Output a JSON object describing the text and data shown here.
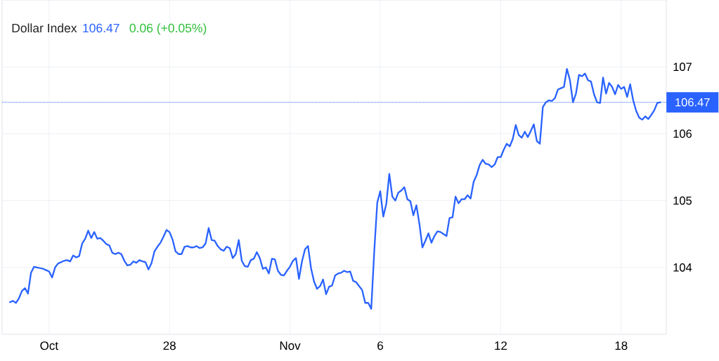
{
  "chart_data": {
    "type": "line",
    "title": "Dollar Index",
    "annotations": [
      "106.47",
      "0.06 (+0.05%)"
    ],
    "categories": [
      null,
      null,
      null,
      null,
      null,
      null,
      null,
      null,
      null,
      null,
      null,
      null,
      null,
      "Oct",
      null,
      null,
      null,
      null,
      null,
      null,
      null,
      null,
      null,
      null,
      null,
      null,
      null,
      null,
      null,
      null,
      null,
      null,
      null,
      null,
      null,
      null,
      null,
      null,
      null,
      null,
      null,
      null,
      null,
      null,
      null,
      null,
      null,
      null,
      null,
      null,
      null,
      null,
      null,
      "28",
      null,
      null,
      null,
      null,
      null,
      null,
      null,
      null,
      null,
      null,
      null,
      null,
      null,
      null,
      null,
      null,
      null,
      null,
      null,
      null,
      null,
      null,
      null,
      null,
      null,
      null,
      null,
      null,
      null,
      null,
      null,
      null,
      null,
      null,
      null,
      null,
      null,
      null,
      null,
      "Nov",
      null,
      null,
      null,
      null,
      null,
      null,
      null,
      null,
      null,
      null,
      null,
      null,
      null,
      null,
      null,
      null,
      null,
      null,
      null,
      null,
      null,
      null,
      null,
      null,
      null,
      null,
      null,
      null,
      null,
      "6",
      null,
      null,
      null,
      null,
      null,
      null,
      null,
      null,
      null,
      null,
      null,
      null,
      null,
      null,
      null,
      null,
      null,
      null,
      null,
      null,
      null,
      null,
      null,
      null,
      null,
      null,
      null,
      null,
      null,
      null,
      null,
      null,
      null,
      null,
      null,
      null,
      null,
      null,
      null,
      "12",
      null,
      null,
      null,
      null,
      null,
      null,
      null,
      null,
      null,
      null,
      null,
      null,
      null,
      null,
      null,
      null,
      null,
      null,
      null,
      null,
      null,
      null,
      null,
      null,
      null,
      null,
      null,
      null,
      null,
      null,
      null,
      null,
      null,
      null,
      null,
      null,
      null,
      null,
      null,
      "18",
      null,
      null,
      null,
      null,
      null,
      null,
      null,
      null,
      null,
      null,
      null,
      null,
      null
    ],
    "values": [
      103.48,
      103.5,
      103.47,
      103.54,
      103.65,
      103.69,
      103.61,
      103.92,
      104.01,
      104.0,
      103.99,
      103.98,
      103.96,
      103.94,
      103.85,
      104.0,
      104.06,
      104.08,
      104.1,
      104.11,
      104.09,
      104.18,
      104.15,
      104.17,
      104.36,
      104.43,
      104.55,
      104.44,
      104.53,
      104.43,
      104.44,
      104.4,
      104.35,
      104.33,
      104.22,
      104.2,
      104.22,
      104.2,
      104.1,
      104.03,
      104.04,
      104.09,
      104.07,
      104.11,
      104.09,
      104.08,
      103.97,
      104.06,
      104.24,
      104.31,
      104.37,
      104.46,
      104.56,
      104.53,
      104.42,
      104.24,
      104.2,
      104.2,
      104.31,
      104.32,
      104.3,
      104.3,
      104.32,
      104.29,
      104.3,
      104.36,
      104.59,
      104.41,
      104.4,
      104.32,
      104.27,
      104.25,
      104.31,
      104.29,
      104.14,
      104.2,
      104.41,
      104.1,
      104.02,
      104.01,
      104.11,
      104.13,
      104.23,
      104.14,
      103.98,
      104.0,
      103.91,
      104.13,
      104.12,
      103.95,
      103.89,
      103.88,
      103.95,
      104.01,
      104.1,
      104.14,
      103.83,
      104.09,
      104.27,
      104.32,
      103.99,
      103.79,
      103.68,
      103.72,
      103.82,
      103.6,
      103.71,
      103.73,
      103.88,
      103.91,
      103.92,
      103.95,
      103.93,
      103.94,
      103.8,
      103.78,
      103.72,
      103.66,
      103.47,
      103.47,
      103.38,
      104.24,
      104.97,
      105.14,
      104.76,
      104.95,
      105.4,
      105.06,
      105.0,
      105.12,
      105.15,
      105.2,
      105.02,
      104.99,
      104.78,
      104.93,
      104.65,
      104.3,
      104.4,
      104.51,
      104.37,
      104.47,
      104.54,
      104.53,
      104.5,
      104.47,
      104.74,
      104.75,
      105.06,
      104.96,
      105.02,
      105.02,
      105.08,
      105.03,
      105.28,
      105.38,
      105.53,
      105.61,
      105.55,
      105.54,
      105.5,
      105.54,
      105.65,
      105.65,
      105.76,
      105.85,
      105.81,
      105.92,
      106.13,
      105.98,
      105.94,
      106.03,
      105.95,
      106.04,
      106.14,
      105.89,
      105.85,
      106.4,
      106.47,
      106.5,
      106.49,
      106.53,
      106.66,
      106.68,
      106.7,
      106.97,
      106.8,
      106.47,
      106.6,
      106.88,
      106.86,
      106.9,
      106.8,
      106.78,
      106.59,
      106.47,
      106.46,
      106.84,
      106.6,
      106.76,
      106.7,
      106.59,
      106.73,
      106.67,
      106.7,
      106.55,
      106.74,
      106.5,
      106.34,
      106.24,
      106.21,
      106.26,
      106.22,
      106.28,
      106.35,
      106.46,
      106.47
    ],
    "color": "#2962ff",
    "ylim": [
      103,
      108
    ],
    "yticks": [
      104,
      105,
      106,
      107
    ],
    "grid": true,
    "ref_lines": [
      {
        "axis": "y",
        "value": 106.47,
        "label": "106.47",
        "color": "#2962ff",
        "line_style": "dotted"
      }
    ]
  }
}
